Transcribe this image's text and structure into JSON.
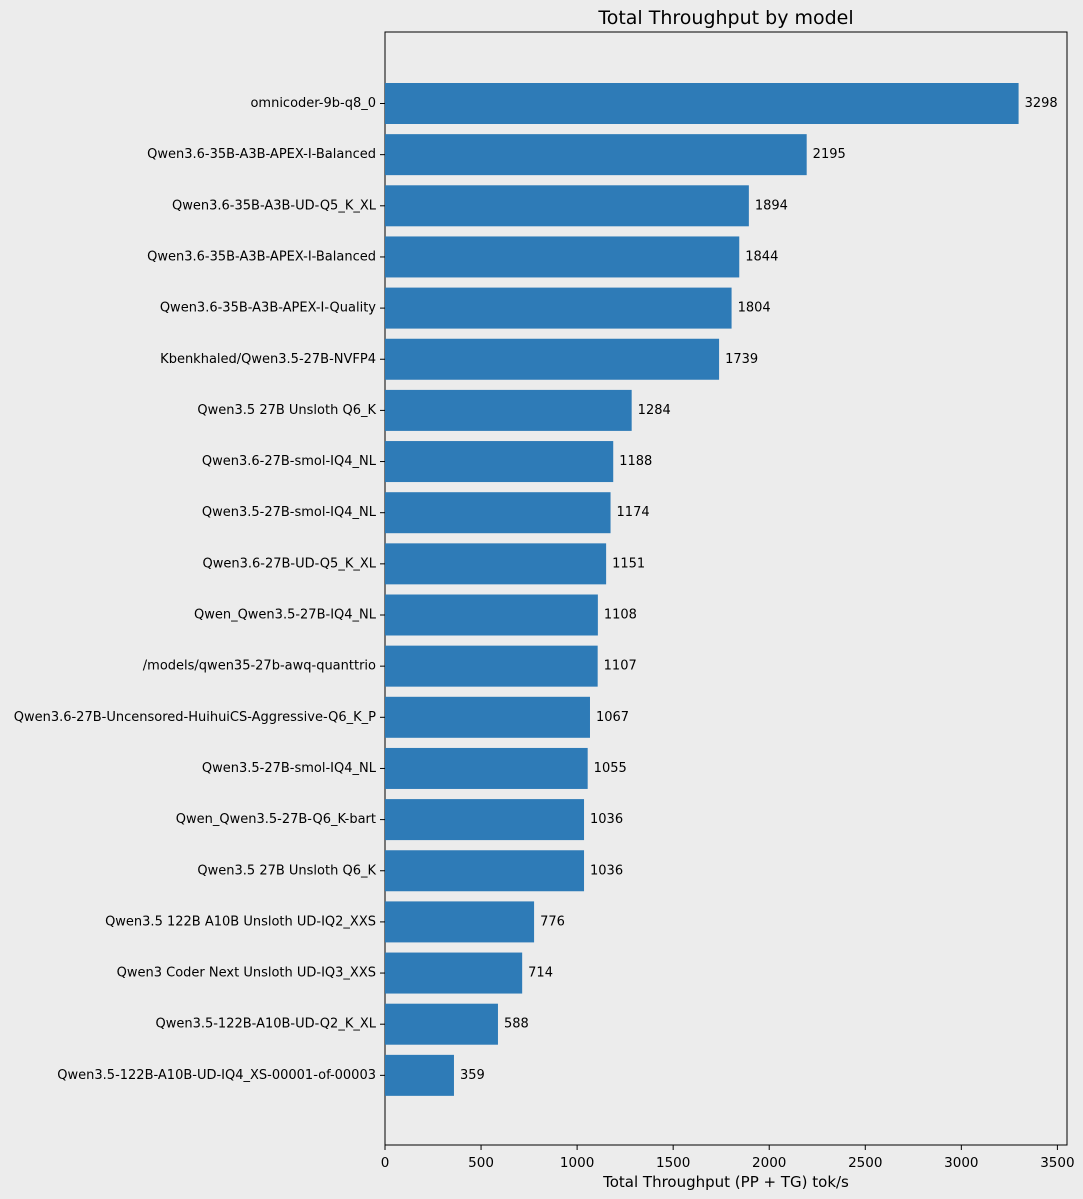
{
  "chart_data": {
    "type": "bar",
    "orientation": "horizontal",
    "title": "Total Throughput by model",
    "xlabel": "Total Throughput (PP + TG) tok/s",
    "ylabel": "",
    "xlim": [
      0,
      3550
    ],
    "xticks": [
      0,
      500,
      1000,
      1500,
      2000,
      2500,
      3000,
      3500
    ],
    "grid": false,
    "bar_color": "#2e7bb7",
    "background_color": "#ececec",
    "categories": [
      "omnicoder-9b-q8_0",
      "Qwen3.6-35B-A3B-APEX-I-Balanced",
      "Qwen3.6-35B-A3B-UD-Q5_K_XL",
      "Qwen3.6-35B-A3B-APEX-I-Balanced",
      "Qwen3.6-35B-A3B-APEX-I-Quality",
      "Kbenkhaled/Qwen3.5-27B-NVFP4",
      "Qwen3.5 27B Unsloth Q6_K",
      "Qwen3.6-27B-smol-IQ4_NL",
      "Qwen3.5-27B-smol-IQ4_NL",
      "Qwen3.6-27B-UD-Q5_K_XL",
      "Qwen_Qwen3.5-27B-IQ4_NL",
      "/models/qwen35-27b-awq-quanttrio",
      "Qwen3.6-27B-Uncensored-HuihuiCS-Aggressive-Q6_K_P",
      "Qwen3.5-27B-smol-IQ4_NL",
      "Qwen_Qwen3.5-27B-Q6_K-bart",
      "Qwen3.5 27B Unsloth Q6_K",
      "Qwen3.5 122B A10B Unsloth UD-IQ2_XXS",
      "Qwen3 Coder Next Unsloth UD-IQ3_XXS",
      "Qwen3.5-122B-A10B-UD-Q2_K_XL",
      "Qwen3.5-122B-A10B-UD-IQ4_XS-00001-of-00003"
    ],
    "values": [
      3298,
      2195,
      1894,
      1844,
      1804,
      1739,
      1284,
      1188,
      1174,
      1151,
      1108,
      1107,
      1067,
      1055,
      1036,
      1036,
      776,
      714,
      588,
      359
    ]
  }
}
